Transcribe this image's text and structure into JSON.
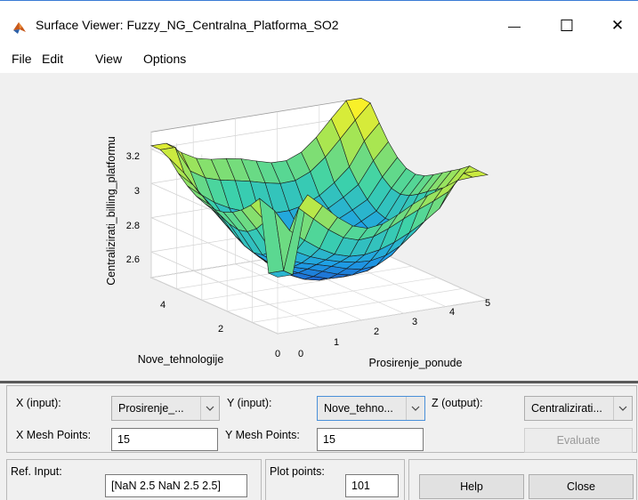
{
  "window": {
    "title": "Surface Viewer: Fuzzy_NG_Centralna_Platforma_SO2",
    "minimize_glyph": "—",
    "maximize_glyph": "☐",
    "close_glyph": "✕"
  },
  "menu": {
    "items": [
      "File",
      "Edit",
      "View",
      "Options"
    ]
  },
  "plot": {
    "chart_data": {
      "type": "surface",
      "xlabel": "Prosirenje_ponude",
      "ylabel": "Nove_tehnologije",
      "zlabel": "Centralizirati_billing_platformu",
      "x_ticks": [
        "0",
        "1",
        "2",
        "3",
        "4",
        "5"
      ],
      "y_ticks": [
        "0",
        "2",
        "4"
      ],
      "z_ticks": [
        "2.6",
        "2.8",
        "3",
        "3.2"
      ],
      "xlim": [
        0,
        5
      ],
      "ylim": [
        0,
        5
      ],
      "zlim": [
        2.45,
        3.3
      ],
      "grid": true
    }
  },
  "controls": {
    "x_input_label": "X (input):",
    "x_input_value": "Prosirenje_...",
    "y_input_label": "Y (input):",
    "y_input_value": "Nove_tehno...",
    "z_output_label": "Z (output):",
    "z_output_value": "Centralizirati...",
    "x_mesh_label": "X Mesh Points:",
    "x_mesh_value": "15",
    "y_mesh_label": "Y Mesh Points:",
    "y_mesh_value": "15",
    "evaluate_label": "Evaluate"
  },
  "bottom": {
    "ref_input_label": "Ref. Input:",
    "ref_input_value": "[NaN 2.5 NaN 2.5 2.5]",
    "plot_points_label": "Plot points:",
    "plot_points_value": "101",
    "help_label": "Help",
    "close_label": "Close"
  },
  "colors": {
    "accent": "#3a7bd5",
    "panel_bg": "#f0f0f0"
  }
}
